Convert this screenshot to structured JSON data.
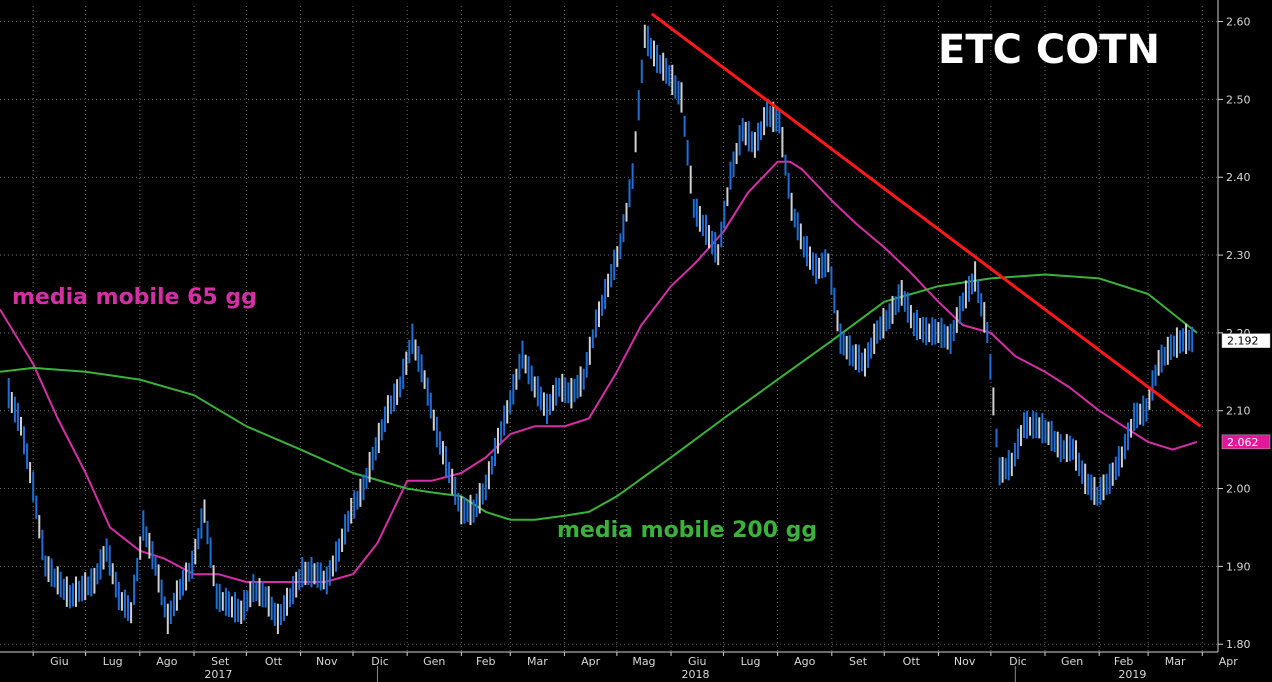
{
  "chart_data": {
    "type": "line",
    "title": "ETC COTN",
    "xlabel": "",
    "ylabel": "",
    "ylim": [
      1.79,
      2.62
    ],
    "y_ticks": [
      "2.60",
      "2.50",
      "2.40",
      "2.30",
      "2.20",
      "2.10",
      "2.00",
      "1.90",
      "1.80"
    ],
    "y_tick_values": [
      2.6,
      2.5,
      2.4,
      2.3,
      2.2,
      2.1,
      2.0,
      1.9,
      1.8
    ],
    "x_ticks": [
      "Giu",
      "Lug",
      "Ago",
      "Set",
      "Ott",
      "Nov",
      "Dic",
      "Gen",
      "Feb",
      "Mar",
      "Apr",
      "Mag",
      "Giu",
      "Lug",
      "Ago",
      "Set",
      "Ott",
      "Nov",
      "Dic",
      "Gen",
      "Feb",
      "Mar",
      "Apr"
    ],
    "x_tick_dates": [
      "2017-06-01",
      "2017-07-01",
      "2017-08-01",
      "2017-09-01",
      "2017-10-01",
      "2017-11-01",
      "2017-12-01",
      "2018-01-01",
      "2018-02-01",
      "2018-03-01",
      "2018-04-01",
      "2018-05-01",
      "2018-06-01",
      "2018-07-01",
      "2018-08-01",
      "2018-09-01",
      "2018-10-01",
      "2018-11-01",
      "2018-12-01",
      "2019-01-01",
      "2019-02-01",
      "2019-03-01",
      "2019-04-01"
    ],
    "years": [
      {
        "label": "2017",
        "date": "2017-09-15"
      },
      {
        "label": "2018",
        "date": "2018-06-15"
      },
      {
        "label": "2019",
        "date": "2019-02-20"
      }
    ],
    "year_separators": [
      "2017-12-15",
      "2018-12-15"
    ],
    "grid": true,
    "legend": "none",
    "annotations": [
      {
        "text": "media mobile 65 gg",
        "color": "#d52fa6"
      },
      {
        "text": "media mobile 200 gg",
        "color": "#3bb33b"
      }
    ],
    "last_values": [
      {
        "series": "price",
        "text": "2.192",
        "color": "#ffffff"
      },
      {
        "series": "ma65",
        "text": "2.062",
        "color": "#e0199b"
      }
    ],
    "price": {
      "name": "",
      "colors": [
        "#1f6fd6",
        "#d0d0d0"
      ],
      "x": [
        "2017-05-18",
        "2017-05-25",
        "2017-06-01",
        "2017-06-08",
        "2017-06-15",
        "2017-06-22",
        "2017-06-29",
        "2017-07-06",
        "2017-07-13",
        "2017-07-20",
        "2017-07-27",
        "2017-08-03",
        "2017-08-10",
        "2017-08-17",
        "2017-08-24",
        "2017-08-31",
        "2017-09-07",
        "2017-09-14",
        "2017-09-21",
        "2017-09-28",
        "2017-10-05",
        "2017-10-12",
        "2017-10-19",
        "2017-10-26",
        "2017-11-02",
        "2017-11-09",
        "2017-11-16",
        "2017-11-23",
        "2017-11-30",
        "2017-12-07",
        "2017-12-14",
        "2017-12-21",
        "2017-12-28",
        "2018-01-04",
        "2018-01-11",
        "2018-01-18",
        "2018-01-25",
        "2018-02-01",
        "2018-02-08",
        "2018-02-15",
        "2018-02-22",
        "2018-03-01",
        "2018-03-08",
        "2018-03-15",
        "2018-03-22",
        "2018-03-29",
        "2018-04-05",
        "2018-04-12",
        "2018-04-19",
        "2018-04-26",
        "2018-05-03",
        "2018-05-10",
        "2018-05-17",
        "2018-05-24",
        "2018-05-31",
        "2018-06-07",
        "2018-06-14",
        "2018-06-21",
        "2018-06-28",
        "2018-07-05",
        "2018-07-12",
        "2018-07-19",
        "2018-07-26",
        "2018-08-02",
        "2018-08-09",
        "2018-08-16",
        "2018-08-23",
        "2018-08-30",
        "2018-09-06",
        "2018-09-13",
        "2018-09-20",
        "2018-09-27",
        "2018-10-04",
        "2018-10-11",
        "2018-10-18",
        "2018-10-25",
        "2018-11-01",
        "2018-11-08",
        "2018-11-15",
        "2018-11-22",
        "2018-11-29",
        "2018-12-06",
        "2018-12-13",
        "2018-12-20",
        "2018-12-27",
        "2019-01-03",
        "2019-01-10",
        "2019-01-17",
        "2019-01-24",
        "2019-01-31",
        "2019-02-07",
        "2019-02-14",
        "2019-02-21",
        "2019-02-28",
        "2019-03-07",
        "2019-03-14",
        "2019-03-21",
        "2019-03-28"
      ],
      "y": [
        2.12,
        2.08,
        2.0,
        1.9,
        1.88,
        1.86,
        1.87,
        1.88,
        1.92,
        1.86,
        1.84,
        1.95,
        1.9,
        1.83,
        1.87,
        1.9,
        1.97,
        1.86,
        1.85,
        1.84,
        1.87,
        1.86,
        1.83,
        1.86,
        1.89,
        1.89,
        1.88,
        1.92,
        1.97,
        2.0,
        2.05,
        2.1,
        2.13,
        2.19,
        2.14,
        2.07,
        2.02,
        1.97,
        1.97,
        2.0,
        2.06,
        2.11,
        2.17,
        2.13,
        2.1,
        2.13,
        2.12,
        2.14,
        2.21,
        2.26,
        2.31,
        2.4,
        2.58,
        2.55,
        2.53,
        2.5,
        2.36,
        2.33,
        2.3,
        2.4,
        2.46,
        2.44,
        2.48,
        2.47,
        2.36,
        2.31,
        2.28,
        2.29,
        2.19,
        2.17,
        2.16,
        2.2,
        2.22,
        2.25,
        2.21,
        2.2,
        2.2,
        2.19,
        2.24,
        2.27,
        2.2,
        2.02,
        2.03,
        2.08,
        2.08,
        2.07,
        2.05,
        2.05,
        2.01,
        1.99,
        2.01,
        2.04,
        2.09,
        2.1,
        2.16,
        2.18,
        2.19,
        2.19
      ]
    },
    "series": [
      {
        "name": "media mobile 65 gg",
        "color": "#d52fa6",
        "x": [
          "2017-05-13",
          "2017-06-01",
          "2017-06-15",
          "2017-07-01",
          "2017-07-15",
          "2017-08-01",
          "2017-08-15",
          "2017-09-01",
          "2017-09-15",
          "2017-10-01",
          "2017-10-15",
          "2017-11-01",
          "2017-11-15",
          "2017-12-01",
          "2017-12-15",
          "2018-01-01",
          "2018-01-15",
          "2018-02-01",
          "2018-02-15",
          "2018-03-01",
          "2018-03-15",
          "2018-04-01",
          "2018-04-15",
          "2018-05-01",
          "2018-05-15",
          "2018-06-01",
          "2018-06-15",
          "2018-07-01",
          "2018-07-15",
          "2018-08-01",
          "2018-08-08",
          "2018-08-15",
          "2018-09-01",
          "2018-09-15",
          "2018-10-01",
          "2018-10-15",
          "2018-11-01",
          "2018-11-15",
          "2018-12-01",
          "2018-12-15",
          "2019-01-01",
          "2019-01-15",
          "2019-02-01",
          "2019-02-15",
          "2019-03-01",
          "2019-03-15",
          "2019-03-29"
        ],
        "y": [
          2.23,
          2.16,
          2.09,
          2.02,
          1.95,
          1.92,
          1.91,
          1.89,
          1.89,
          1.88,
          1.88,
          1.88,
          1.88,
          1.89,
          1.93,
          2.01,
          2.01,
          2.02,
          2.04,
          2.07,
          2.08,
          2.08,
          2.09,
          2.15,
          2.21,
          2.26,
          2.29,
          2.33,
          2.38,
          2.42,
          2.42,
          2.41,
          2.37,
          2.34,
          2.31,
          2.28,
          2.24,
          2.21,
          2.2,
          2.17,
          2.15,
          2.13,
          2.1,
          2.08,
          2.06,
          2.05,
          2.06
        ]
      },
      {
        "name": "media mobile 200 gg",
        "color": "#3bb33b",
        "x": [
          "2017-05-13",
          "2017-06-01",
          "2017-07-01",
          "2017-08-01",
          "2017-09-01",
          "2017-10-01",
          "2017-11-01",
          "2017-12-01",
          "2018-01-01",
          "2018-01-15",
          "2018-02-01",
          "2018-02-15",
          "2018-03-01",
          "2018-03-15",
          "2018-04-01",
          "2018-04-15",
          "2018-05-01",
          "2018-06-01",
          "2018-07-01",
          "2018-08-01",
          "2018-09-01",
          "2018-10-01",
          "2018-11-01",
          "2018-12-01",
          "2019-01-01",
          "2019-02-01",
          "2019-03-01",
          "2019-03-29"
        ],
        "y": [
          2.15,
          2.155,
          2.15,
          2.14,
          2.12,
          2.08,
          2.05,
          2.02,
          2.0,
          1.995,
          1.99,
          1.97,
          1.96,
          1.96,
          1.965,
          1.97,
          1.99,
          2.04,
          2.09,
          2.14,
          2.19,
          2.24,
          2.26,
          2.27,
          2.275,
          2.27,
          2.25,
          2.2
        ]
      },
      {
        "name": "",
        "color": "#ff1a1a",
        "x": [
          "2018-05-21",
          "2019-03-31"
        ],
        "y": [
          2.61,
          2.08
        ]
      }
    ]
  }
}
